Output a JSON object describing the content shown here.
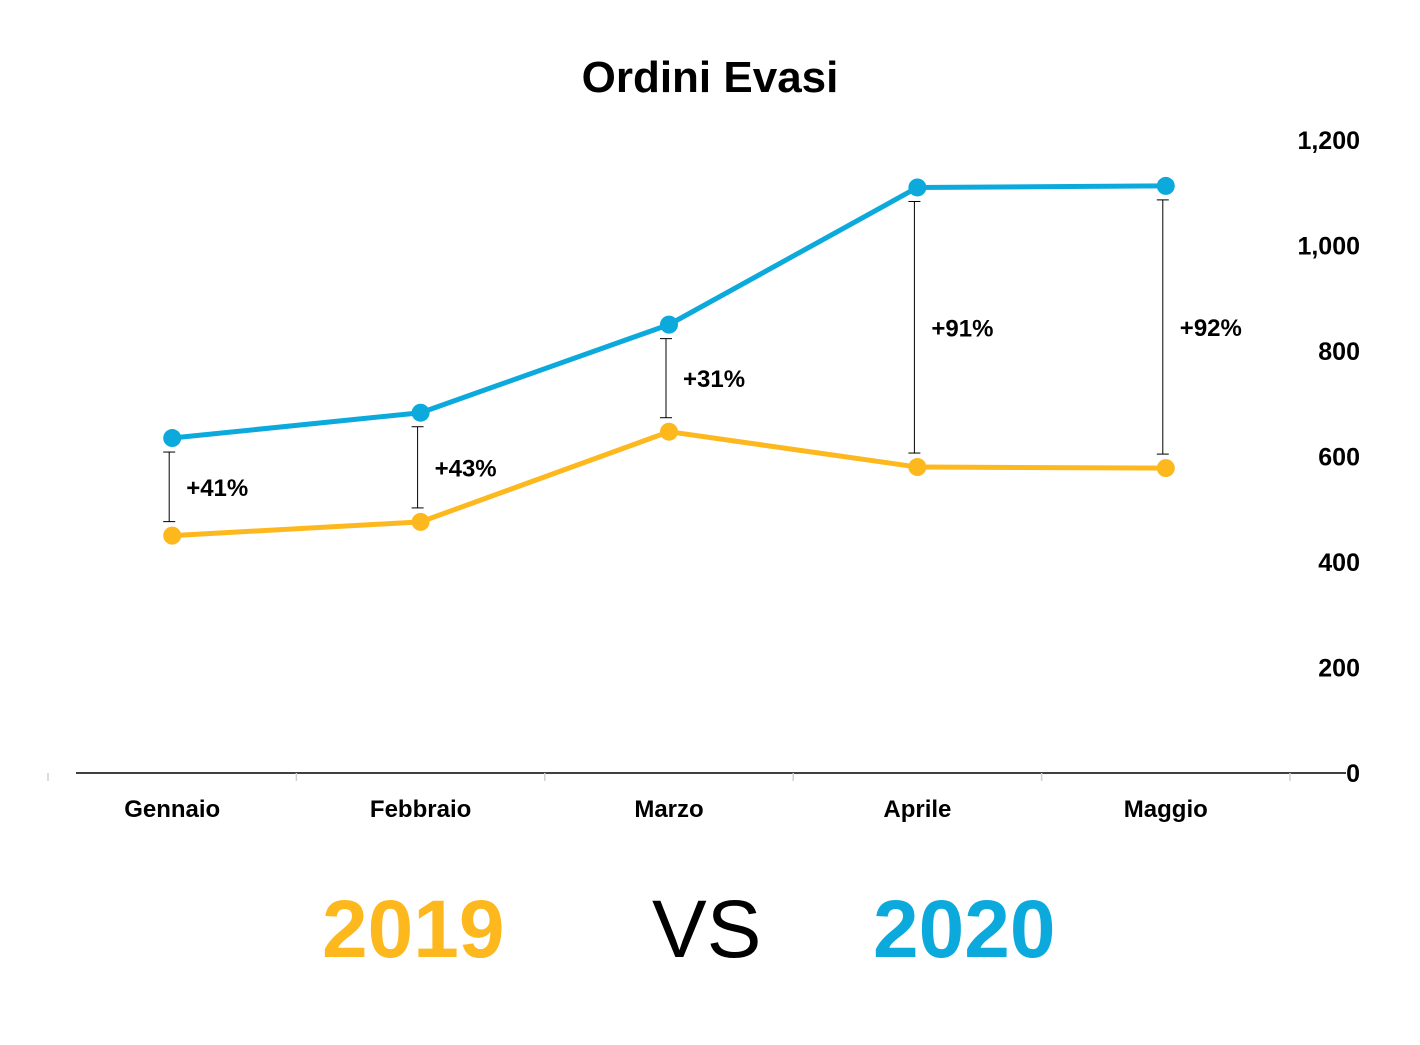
{
  "chart_data": {
    "type": "line",
    "title": "Ordini Evasi",
    "categories": [
      "Gennaio",
      "Febbraio",
      "Marzo",
      "Aprile",
      "Maggio"
    ],
    "series": [
      {
        "name": "2019",
        "color": "#FDB81E",
        "values": [
          450,
          476,
          647,
          580,
          578
        ]
      },
      {
        "name": "2020",
        "color": "#0CAADC",
        "values": [
          635,
          683,
          850,
          1110,
          1113
        ]
      }
    ],
    "differences": [
      "+41%",
      "+43%",
      "+31%",
      "+91%",
      "+92%"
    ],
    "y_axis_position": "right",
    "ylim": [
      0,
      1200
    ],
    "yticks": [
      "0",
      "200",
      "400",
      "600",
      "800",
      "1,000",
      "1,200"
    ],
    "grid": false,
    "legend": {
      "left": "2019",
      "middle": "VS",
      "right": "2020"
    }
  }
}
